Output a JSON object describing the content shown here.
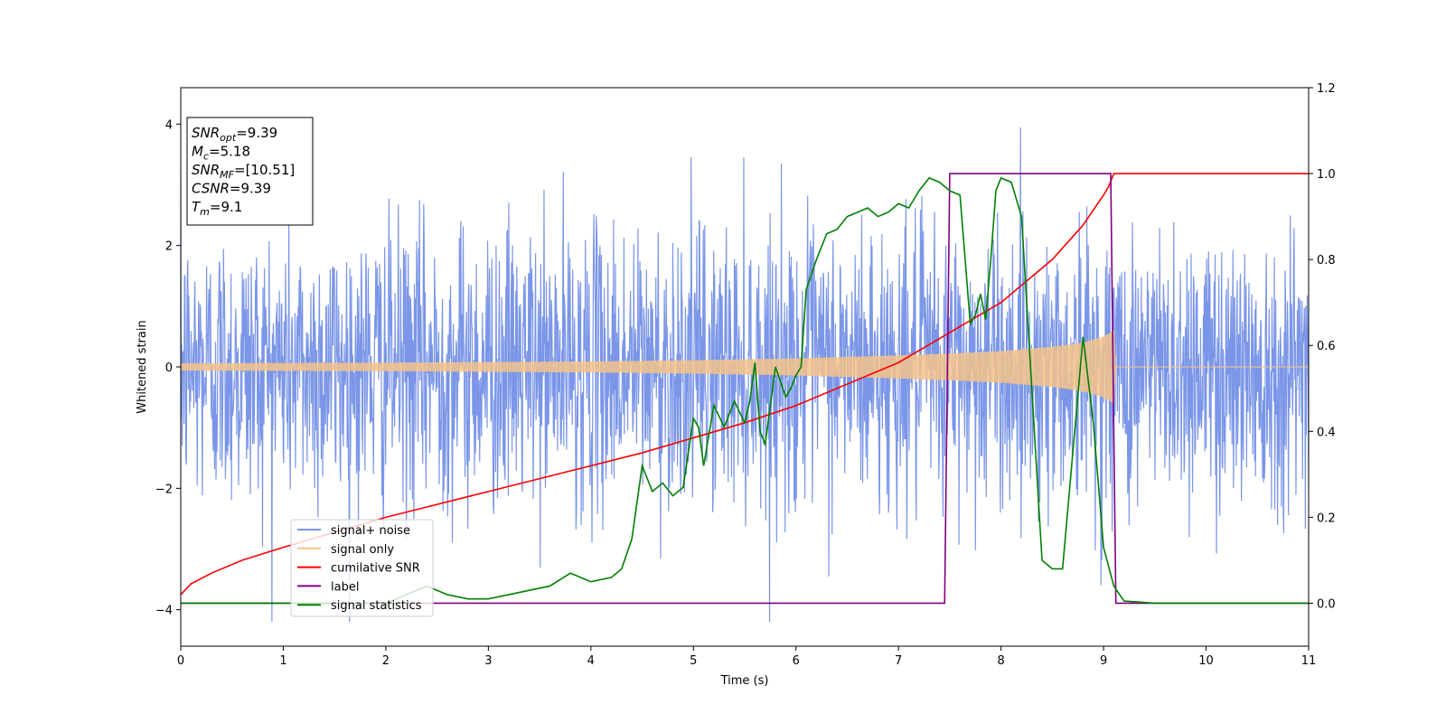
{
  "chart_data": {
    "type": "line",
    "xlabel": "Time (s)",
    "ylabel": "Whitened strain",
    "xlim": [
      0,
      11
    ],
    "ylim": [
      -4.6,
      4.6
    ],
    "y2lim": [
      -0.1,
      1.2
    ],
    "xticks": [
      "0",
      "1",
      "2",
      "3",
      "4",
      "5",
      "6",
      "7",
      "8",
      "9",
      "10",
      "11"
    ],
    "yticks": [
      "−4",
      "−2",
      "0",
      "2",
      "4"
    ],
    "y2ticks": [
      "0.0",
      "0.2",
      "0.4",
      "0.6",
      "0.8",
      "1.0",
      "1.2"
    ],
    "legend_position": "lower-left",
    "info_box": {
      "position": "top-left",
      "lines": [
        {
          "label": "SNR",
          "sub": "opt",
          "value": "=9.39"
        },
        {
          "label": "M",
          "sub": "c",
          "value": "=5.18"
        },
        {
          "label": "SNR",
          "sub": "MF",
          "value": "=[10.51]"
        },
        {
          "label": "CSNR",
          "sub": "",
          "value": "=9.39"
        },
        {
          "label": "T",
          "sub": "m",
          "value": "=9.1"
        }
      ]
    },
    "series": [
      {
        "name": "signal+ noise",
        "color": "#7b96e8",
        "axis": "left",
        "description_values": {
          "mean": 0,
          "std": 1.15,
          "peak_max": 4.2,
          "peak_min": -4.2,
          "t_start": 0,
          "t_end": 11
        }
      },
      {
        "name": "signal only",
        "color": "#f5c38a",
        "axis": "left",
        "envelope": {
          "x": [
            0,
            1,
            2,
            3,
            4,
            5,
            6,
            7,
            7.5,
            8,
            8.5,
            8.8,
            9.0,
            9.1,
            9.12,
            11
          ],
          "y": [
            0.06,
            0.065,
            0.07,
            0.08,
            0.09,
            0.11,
            0.14,
            0.19,
            0.22,
            0.26,
            0.33,
            0.4,
            0.5,
            0.6,
            0,
            0
          ]
        }
      },
      {
        "name": "cumilative SNR",
        "color": "#ff0000",
        "axis": "right",
        "x": [
          0,
          0.1,
          0.3,
          0.6,
          1.0,
          1.5,
          2.0,
          2.5,
          3.0,
          3.5,
          4.0,
          4.5,
          5.0,
          5.5,
          6.0,
          6.5,
          7.0,
          7.5,
          8.0,
          8.5,
          8.8,
          9.0,
          9.05,
          9.1,
          11
        ],
        "y": [
          0.02,
          0.045,
          0.07,
          0.1,
          0.13,
          0.165,
          0.2,
          0.23,
          0.26,
          0.29,
          0.32,
          0.35,
          0.385,
          0.42,
          0.46,
          0.51,
          0.56,
          0.63,
          0.7,
          0.8,
          0.88,
          0.95,
          0.97,
          1.0,
          1.0
        ]
      },
      {
        "name": "label",
        "color": "#800080",
        "axis": "right",
        "x": [
          0,
          7.45,
          7.5,
          9.07,
          9.12,
          11
        ],
        "y": [
          0,
          0,
          1,
          1,
          0,
          0
        ]
      },
      {
        "name": "signal statistics",
        "color": "#008000",
        "axis": "right",
        "x": [
          0,
          1,
          2,
          2.2,
          2.4,
          2.6,
          2.8,
          3.0,
          3.2,
          3.4,
          3.6,
          3.8,
          4.0,
          4.2,
          4.3,
          4.4,
          4.5,
          4.6,
          4.7,
          4.8,
          4.9,
          5.0,
          5.05,
          5.1,
          5.2,
          5.3,
          5.4,
          5.5,
          5.55,
          5.6,
          5.65,
          5.7,
          5.8,
          5.9,
          5.95,
          6.0,
          6.05,
          6.1,
          6.2,
          6.3,
          6.4,
          6.5,
          6.6,
          6.7,
          6.8,
          6.9,
          7.0,
          7.1,
          7.2,
          7.3,
          7.4,
          7.5,
          7.6,
          7.7,
          7.75,
          7.8,
          7.85,
          7.9,
          7.95,
          8.0,
          8.1,
          8.2,
          8.3,
          8.4,
          8.5,
          8.6,
          8.7,
          8.8,
          8.9,
          9.0,
          9.1,
          9.2,
          9.5,
          10,
          11
        ],
        "y": [
          0.0,
          0.0,
          0.0,
          0.02,
          0.04,
          0.02,
          0.01,
          0.01,
          0.02,
          0.03,
          0.04,
          0.07,
          0.05,
          0.06,
          0.08,
          0.15,
          0.32,
          0.26,
          0.28,
          0.25,
          0.27,
          0.43,
          0.41,
          0.32,
          0.46,
          0.41,
          0.47,
          0.42,
          0.47,
          0.56,
          0.4,
          0.37,
          0.55,
          0.48,
          0.5,
          0.53,
          0.55,
          0.73,
          0.8,
          0.86,
          0.87,
          0.9,
          0.91,
          0.92,
          0.9,
          0.91,
          0.93,
          0.92,
          0.96,
          0.99,
          0.98,
          0.96,
          0.95,
          0.65,
          0.67,
          0.72,
          0.66,
          0.8,
          0.96,
          0.99,
          0.98,
          0.9,
          0.5,
          0.1,
          0.08,
          0.08,
          0.35,
          0.62,
          0.42,
          0.13,
          0.04,
          0.005,
          0.0,
          0.0,
          0.0
        ]
      }
    ]
  }
}
